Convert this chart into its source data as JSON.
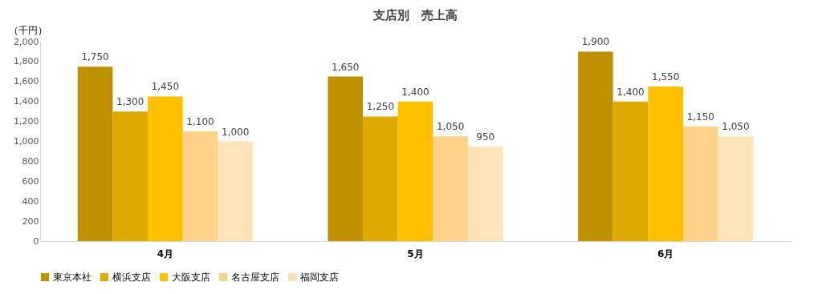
{
  "chart_data": {
    "type": "bar",
    "title": "支店別　売上高",
    "ylabel": "（千円）",
    "categories": [
      "4月",
      "5月",
      "6月"
    ],
    "series": [
      {
        "name": "東京本社",
        "color": "#bf9000",
        "values": [
          1750,
          1650,
          1900
        ],
        "value_labels": [
          "1,750",
          "1,650",
          "1,900"
        ]
      },
      {
        "name": "横浜支店",
        "color": "#dea900",
        "values": [
          1300,
          1250,
          1400
        ],
        "value_labels": [
          "1,300",
          "1,250",
          "1,400"
        ]
      },
      {
        "name": "大阪支店",
        "color": "#ffc000",
        "values": [
          1450,
          1400,
          1550
        ],
        "value_labels": [
          "1,450",
          "1,400",
          "1,550"
        ]
      },
      {
        "name": "名古屋支店",
        "color": "#ffd28a",
        "values": [
          1100,
          1050,
          1150
        ],
        "value_labels": [
          "1,100",
          "1,050",
          "1,150"
        ]
      },
      {
        "name": "福岡支店",
        "color": "#ffe2b8",
        "values": [
          1000,
          950,
          1050
        ],
        "value_labels": [
          "1,000",
          "950",
          "1,050"
        ]
      }
    ],
    "ylim": [
      0,
      2000
    ],
    "yticks": [
      {
        "value": 0,
        "label": "0"
      },
      {
        "value": 200,
        "label": "200"
      },
      {
        "value": 400,
        "label": "400"
      },
      {
        "value": 600,
        "label": "600"
      },
      {
        "value": 800,
        "label": "800"
      },
      {
        "value": 1000,
        "label": "1,000"
      },
      {
        "value": 1200,
        "label": "1,200"
      },
      {
        "value": 1400,
        "label": "1,400"
      },
      {
        "value": 1600,
        "label": "1,600"
      },
      {
        "value": 1800,
        "label": "1,800"
      },
      {
        "value": 2000,
        "label": "2,000"
      }
    ],
    "grid": false,
    "legend": "bottom"
  }
}
